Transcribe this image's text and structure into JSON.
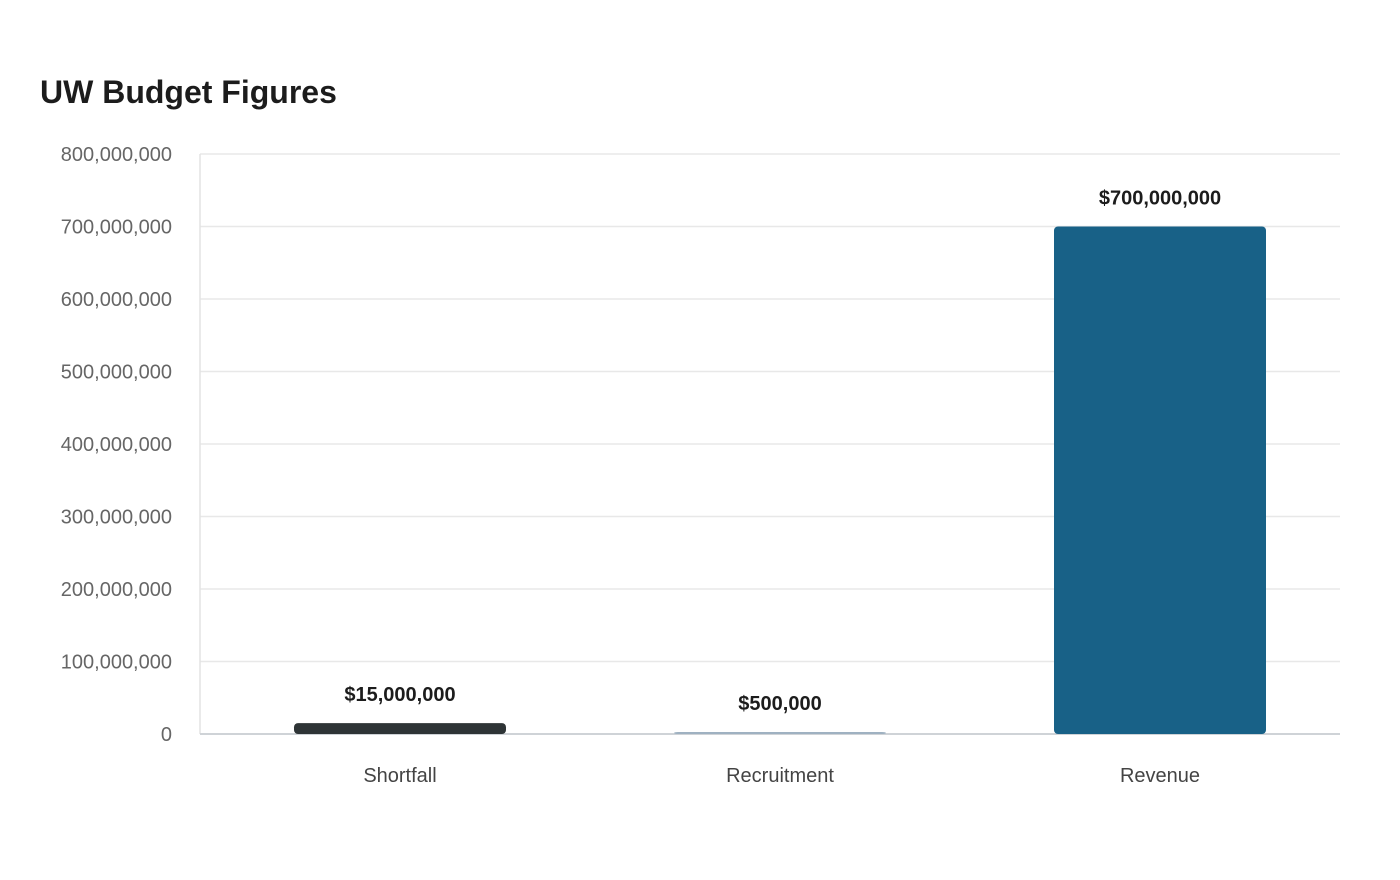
{
  "chart_data": {
    "type": "bar",
    "title": "UW Budget Figures",
    "xlabel": "",
    "ylabel": "",
    "categories": [
      "Shortfall",
      "Recruitment",
      "Revenue"
    ],
    "values": [
      15000000,
      500000,
      700000000
    ],
    "data_labels": [
      "$15,000,000",
      "$500,000",
      "$700,000,000"
    ],
    "bar_colors": [
      "#2e3436",
      "#9fb1c1",
      "#186187"
    ],
    "ylim": [
      0,
      800000000
    ],
    "yticks": [
      0,
      100000000,
      200000000,
      300000000,
      400000000,
      500000000,
      600000000,
      700000000,
      800000000
    ],
    "ytick_labels": [
      "0",
      "100,000,000",
      "200,000,000",
      "300,000,000",
      "400,000,000",
      "500,000,000",
      "600,000,000",
      "700,000,000",
      "800,000,000"
    ],
    "grid": true,
    "legend": false
  }
}
